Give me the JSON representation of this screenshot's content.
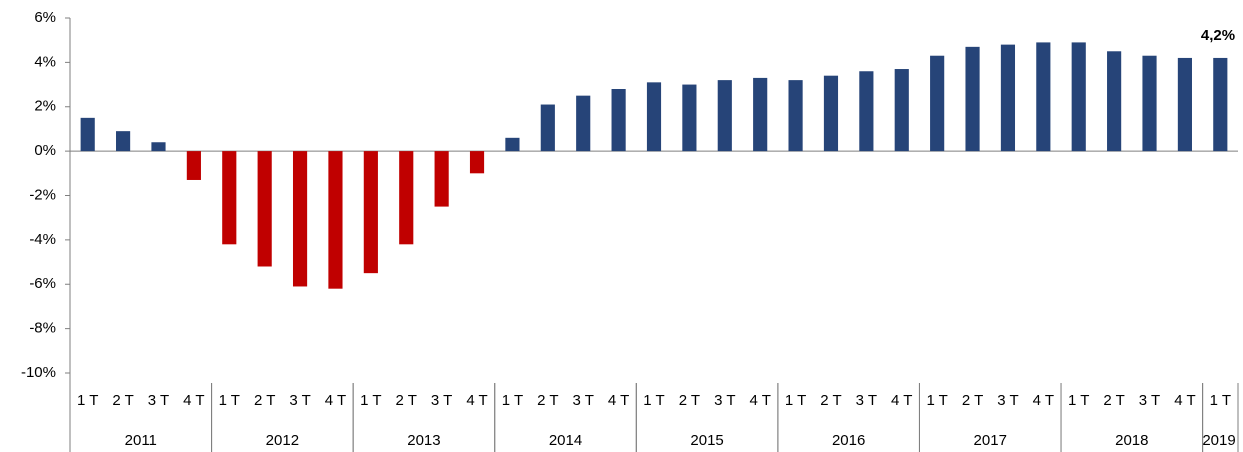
{
  "chart_data": {
    "type": "bar",
    "groups": [
      {
        "name": "2011",
        "categories": [
          "1 T",
          "2 T",
          "3 T",
          "4 T"
        ]
      },
      {
        "name": "2012",
        "categories": [
          "1 T",
          "2 T",
          "3 T",
          "4 T"
        ]
      },
      {
        "name": "2013",
        "categories": [
          "1 T",
          "2 T",
          "3 T",
          "4 T"
        ]
      },
      {
        "name": "2014",
        "categories": [
          "1 T",
          "2 T",
          "3 T",
          "4 T"
        ]
      },
      {
        "name": "2015",
        "categories": [
          "1 T",
          "2 T",
          "3 T",
          "4 T"
        ]
      },
      {
        "name": "2016",
        "categories": [
          "1 T",
          "2 T",
          "3 T",
          "4 T"
        ]
      },
      {
        "name": "2017",
        "categories": [
          "1 T",
          "2 T",
          "3 T",
          "4 T"
        ]
      },
      {
        "name": "2018",
        "categories": [
          "1 T",
          "2 T",
          "3 T",
          "4 T"
        ]
      },
      {
        "name": "2019",
        "categories": [
          "1 T"
        ]
      }
    ],
    "values": [
      1.5,
      0.9,
      0.4,
      -1.3,
      -4.2,
      -5.2,
      -6.1,
      -6.2,
      -5.5,
      -4.2,
      -2.5,
      -1.0,
      0.6,
      2.1,
      2.5,
      2.8,
      3.1,
      3.0,
      3.2,
      3.3,
      3.2,
      3.4,
      3.6,
      3.7,
      4.3,
      4.7,
      4.8,
      4.9,
      4.9,
      4.5,
      4.3,
      4.2,
      4.2
    ],
    "value_labels": [
      null,
      null,
      null,
      null,
      null,
      null,
      null,
      null,
      null,
      null,
      null,
      null,
      null,
      null,
      null,
      null,
      null,
      null,
      null,
      null,
      null,
      null,
      null,
      null,
      null,
      null,
      null,
      null,
      null,
      null,
      null,
      null,
      "4,2%"
    ],
    "color": "#264478",
    "negative_color": "#c00000",
    "ylim": [
      -10,
      6
    ],
    "yticks": [
      {
        "value": -10,
        "label": "-10%"
      },
      {
        "value": -8,
        "label": "-8%"
      },
      {
        "value": -6,
        "label": "-6%"
      },
      {
        "value": -4,
        "label": "-4%"
      },
      {
        "value": -2,
        "label": "-2%"
      },
      {
        "value": 0,
        "label": "0%"
      },
      {
        "value": 2,
        "label": "2%"
      },
      {
        "value": 4,
        "label": "4%"
      },
      {
        "value": 6,
        "label": "6%"
      }
    ],
    "grid": false
  }
}
